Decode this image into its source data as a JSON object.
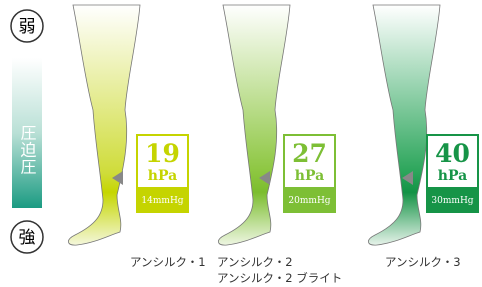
{
  "scale": {
    "weak": "弱",
    "strong": "強",
    "label": "圧迫圧"
  },
  "products": [
    {
      "value": 19,
      "unit": "hPa",
      "mmhg": "14mmHg",
      "names": [
        "アンシルク・1"
      ]
    },
    {
      "value": 27,
      "unit": "hPa",
      "mmhg": "20mmHg",
      "names": [
        "アンシルク・2",
        "アンシルク・2 ブライト"
      ]
    },
    {
      "value": 40,
      "unit": "hPa",
      "mmhg": "30mmHg",
      "names": [
        "アンシルク・3"
      ]
    }
  ]
}
